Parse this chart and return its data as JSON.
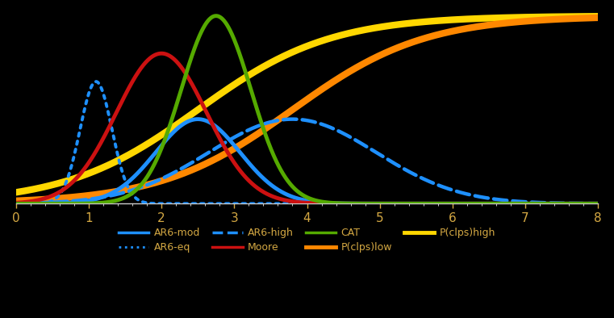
{
  "background_color": "#000000",
  "text_color": "#d4a843",
  "tick_color": "#cccccc",
  "xlim": [
    0,
    8
  ],
  "ylim": [
    0,
    1.02
  ],
  "xticks": [
    0,
    1,
    2,
    3,
    4,
    5,
    6,
    7,
    8
  ],
  "curves": [
    {
      "key": "AR6_eq",
      "type": "normal",
      "mean": 1.1,
      "std": 0.22,
      "peak": 0.65,
      "color": "#1e90ff",
      "linestyle": "dotted",
      "linewidth": 2.8,
      "label": "AR6-eq",
      "zorder": 3
    },
    {
      "key": "AR6_mod",
      "type": "normal",
      "mean": 2.5,
      "std": 0.58,
      "peak": 0.45,
      "color": "#1e90ff",
      "linestyle": "solid",
      "linewidth": 3.5,
      "label": "AR6-mod",
      "zorder": 3
    },
    {
      "key": "AR6_high",
      "type": "normal",
      "mean": 3.8,
      "std": 1.15,
      "peak": 0.45,
      "color": "#1e90ff",
      "linestyle": "dashed",
      "linewidth": 3.2,
      "label": "AR6-high",
      "zorder": 3
    },
    {
      "key": "Moore",
      "type": "normal",
      "mean": 2.0,
      "std": 0.62,
      "peak": 0.8,
      "color": "#cc1111",
      "linestyle": "solid",
      "linewidth": 3.5,
      "label": "Moore",
      "zorder": 4
    },
    {
      "key": "CAT",
      "type": "normal",
      "mean": 2.75,
      "std": 0.48,
      "peak": 1.0,
      "color": "#55aa00",
      "linestyle": "solid",
      "linewidth": 3.5,
      "label": "CAT",
      "zorder": 4
    },
    {
      "key": "Pclps_low",
      "type": "logistic",
      "x0": 3.8,
      "k": 1.1,
      "scale": 1.0,
      "color": "#ff8800",
      "linestyle": "solid",
      "linewidth": 6.0,
      "label": "P(clps)low",
      "zorder": 2
    },
    {
      "key": "Pclps_high",
      "type": "logistic",
      "x0": 2.5,
      "k": 1.1,
      "scale": 1.0,
      "color": "#ffd700",
      "linestyle": "solid",
      "linewidth": 6.0,
      "label": "P(clps)high",
      "zorder": 1
    }
  ],
  "legend_rows": [
    [
      {
        "label": "AR6-mod",
        "color": "#1e90ff",
        "linestyle": "solid",
        "linewidth": 2.5
      },
      {
        "label": "AR6-eq",
        "color": "#1e90ff",
        "linestyle": "dotted",
        "linewidth": 2.0
      },
      {
        "label": "AR6-high",
        "color": "#1e90ff",
        "linestyle": "dashed",
        "linewidth": 2.5
      },
      {
        "label": "Moore",
        "color": "#cc1111",
        "linestyle": "solid",
        "linewidth": 2.5
      }
    ],
    [
      {
        "label": "CAT",
        "color": "#55aa00",
        "linestyle": "solid",
        "linewidth": 2.5
      },
      {
        "label": "P(clps)low",
        "color": "#ff8800",
        "linestyle": "solid",
        "linewidth": 3.5
      },
      {
        "label": "P(clps)high",
        "color": "#ffd700",
        "linestyle": "solid",
        "linewidth": 3.5
      }
    ]
  ]
}
